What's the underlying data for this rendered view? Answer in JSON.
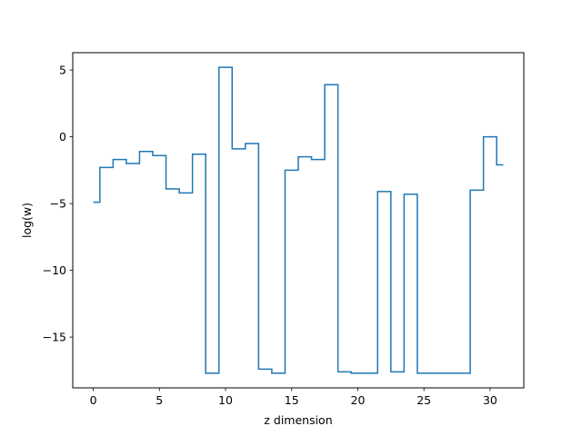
{
  "chart_data": {
    "type": "line",
    "drawstyle": "steps-mid",
    "title": "",
    "xlabel": "z dimension",
    "ylabel": "log(w)",
    "xlim": [
      -1.55,
      32.55
    ],
    "ylim": [
      -18.8,
      6.3
    ],
    "xticks": [
      0,
      5,
      10,
      15,
      20,
      25,
      30
    ],
    "yticks": [
      5,
      0,
      -5,
      -10,
      -15
    ],
    "ytick_labels": [
      "5",
      "0",
      "−5",
      "−10",
      "−15"
    ],
    "grid": false,
    "legend": "none",
    "color": "#1f77b4",
    "series": [
      {
        "x": [
          0,
          1,
          2,
          3,
          4,
          5,
          6,
          7,
          8,
          9,
          10,
          11,
          12,
          13,
          14,
          15,
          16,
          17,
          18,
          19,
          20,
          21,
          22,
          23,
          24,
          25,
          26,
          27,
          28,
          29,
          30,
          31
        ],
        "values": [
          -4.9,
          -2.3,
          -1.7,
          -2.0,
          -1.1,
          -1.4,
          -3.9,
          -4.2,
          -1.3,
          -17.7,
          5.2,
          -0.9,
          -0.5,
          -17.4,
          -17.7,
          -2.5,
          -1.5,
          -1.7,
          3.9,
          -17.6,
          -17.7,
          -17.7,
          -4.1,
          -17.6,
          -4.3,
          -17.7,
          -17.7,
          -17.7,
          -17.7,
          -4.0,
          0.0,
          -2.1
        ]
      }
    ]
  }
}
